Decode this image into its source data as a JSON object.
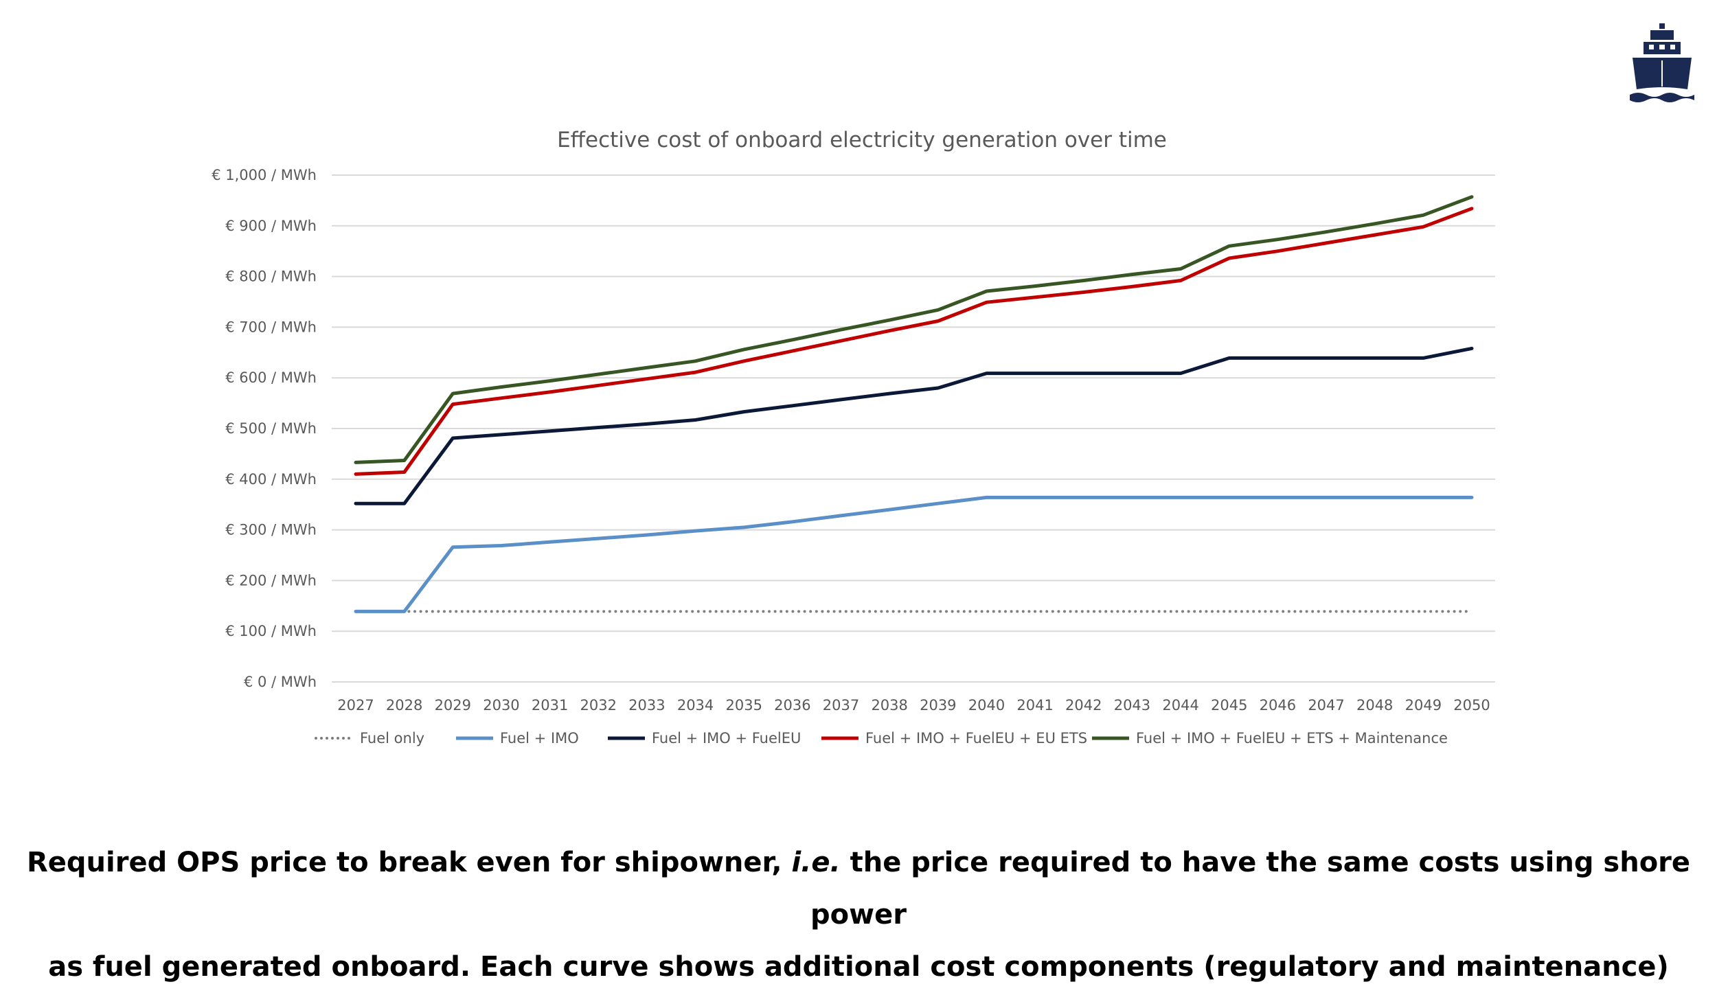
{
  "logo": {
    "icon": "ship-icon",
    "color": "#1b2a52"
  },
  "caption": {
    "line1_part1": "Required OPS price to break even for shipowner, ",
    "line1_italic": "i.e.",
    "line1_part2": " the price required to have the same costs using shore power",
    "line2": "as fuel generated onboard. Each curve shows additional cost components (regulatory and maintenance)"
  },
  "chart_data": {
    "type": "line",
    "title": "Effective cost of onboard electricity generation over time",
    "xlabel": "",
    "ylabel": "",
    "ylim": [
      0,
      1000
    ],
    "y_ticks": [
      0,
      100,
      200,
      300,
      400,
      500,
      600,
      700,
      800,
      900,
      1000
    ],
    "y_tick_labels": [
      "€ 0 / MWh",
      "€ 100 / MWh",
      "€ 200 / MWh",
      "€ 300 / MWh",
      "€ 400 / MWh",
      "€ 500 / MWh",
      "€ 600 / MWh",
      "€ 700 / MWh",
      "€ 800 / MWh",
      "€ 900 / MWh",
      "€ 1,000 / MWh"
    ],
    "grid": true,
    "legend_position": "bottom",
    "categories": [
      "2027",
      "2028",
      "2029",
      "2030",
      "2031",
      "2032",
      "2033",
      "2034",
      "2035",
      "2036",
      "2037",
      "2038",
      "2039",
      "2040",
      "2041",
      "2042",
      "2043",
      "2044",
      "2045",
      "2046",
      "2047",
      "2048",
      "2049",
      "2050"
    ],
    "series": [
      {
        "name": "Fuel only",
        "color": "#7f7f7f",
        "style": "dotted",
        "values": [
          139,
          139,
          139,
          139,
          139,
          139,
          139,
          139,
          139,
          139,
          139,
          139,
          139,
          139,
          139,
          139,
          139,
          139,
          139,
          139,
          139,
          139,
          139,
          139
        ]
      },
      {
        "name": "Fuel + IMO",
        "color": "#5b8fc7",
        "style": "solid",
        "values": [
          139,
          139,
          266,
          269,
          276,
          283,
          290,
          298,
          305,
          316,
          328,
          340,
          352,
          364,
          364,
          364,
          364,
          364,
          364,
          364,
          364,
          364,
          364,
          364
        ]
      },
      {
        "name": "Fuel + IMO + FuelEU",
        "color": "#0c1838",
        "style": "solid",
        "values": [
          352,
          352,
          481,
          488,
          495,
          502,
          509,
          517,
          533,
          545,
          557,
          569,
          580,
          609,
          609,
          609,
          609,
          609,
          639,
          639,
          639,
          639,
          639,
          658
        ]
      },
      {
        "name": "Fuel + IMO + FuelEU + EU ETS",
        "color": "#c00000",
        "style": "solid",
        "values": [
          410,
          414,
          548,
          560,
          572,
          585,
          598,
          611,
          633,
          653,
          673,
          693,
          712,
          749,
          759,
          769,
          780,
          792,
          836,
          850,
          866,
          882,
          898,
          934
        ]
      },
      {
        "name": "Fuel + IMO + FuelEU + ETS + Maintenance",
        "color": "#375623",
        "style": "solid",
        "values": [
          433,
          437,
          569,
          582,
          594,
          607,
          620,
          633,
          656,
          675,
          695,
          714,
          734,
          771,
          781,
          792,
          804,
          815,
          860,
          873,
          888,
          904,
          921,
          957
        ]
      }
    ]
  }
}
